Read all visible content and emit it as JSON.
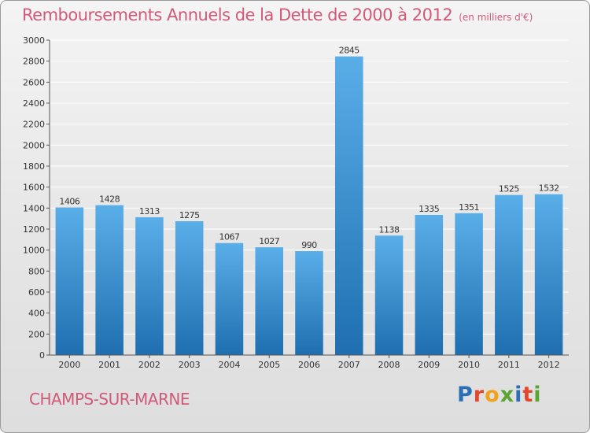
{
  "title": "Remboursements Annuels de la Dette de 2000 à 2012",
  "subtitle": "(en milliers d'€)",
  "commune": "CHAMPS-SUR-MARNE",
  "logo": {
    "letters": [
      "P",
      "r",
      "o",
      "x",
      "i",
      "t",
      "i"
    ],
    "colors": [
      "#2b6fb6",
      "#e3462c",
      "#f0a21a",
      "#5aa532",
      "#2b6fb6",
      "#e3462c",
      "#5aa532"
    ]
  },
  "colors": {
    "bar_top": "#5aaee8",
    "bar_bottom": "#1f6fb0",
    "title": "#d05a78",
    "grid": "#ffffff"
  },
  "chart_data": {
    "type": "bar",
    "categories": [
      "2000",
      "2001",
      "2002",
      "2003",
      "2004",
      "2005",
      "2006",
      "2007",
      "2008",
      "2009",
      "2010",
      "2011",
      "2012"
    ],
    "values": [
      1406,
      1428,
      1313,
      1275,
      1067,
      1027,
      990,
      2845,
      1138,
      1335,
      1351,
      1525,
      1532
    ],
    "data_labels": [
      "1406",
      "1428",
      "1313",
      "1275",
      "1067",
      "1027",
      "990",
      "2845",
      "1138",
      "1335",
      "1351",
      "1525",
      "1532"
    ],
    "yticks": [
      "0",
      "200",
      "400",
      "600",
      "800",
      "1000",
      "1200",
      "1400",
      "1600",
      "1800",
      "2000",
      "2200",
      "2400",
      "2600",
      "2800",
      "3000"
    ],
    "ylim": [
      0,
      3000
    ],
    "grid": true,
    "legend": "none"
  }
}
